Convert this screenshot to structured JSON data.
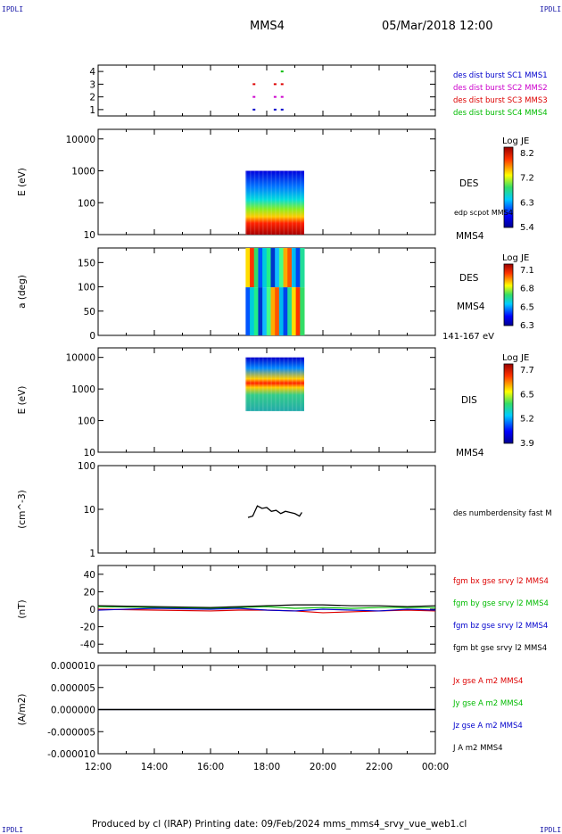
{
  "header": {
    "corner_label": "IPDLI",
    "title": "MMS4",
    "date": "05/Mar/2018 12:00"
  },
  "footer": {
    "text": "Produced by cl (IRAP)   Printing date: 09/Feb/2024   mms_mms4_srvy_vue_web1.cl"
  },
  "colors": {
    "mms1": "#0000cc",
    "mms2": "#cc00cc",
    "mms3": "#dd0000",
    "mms4": "#00bb00",
    "bx": "#dd0000",
    "by": "#00bb00",
    "bz": "#0000cc",
    "bt": "#000000"
  },
  "chart_data": [
    {
      "type": "scatter",
      "name": "burst availability",
      "yticks": [
        "1",
        "2",
        "3",
        "4"
      ],
      "ylim": [
        0.5,
        4.5
      ],
      "xlim": [
        "12:00",
        "00:00"
      ],
      "series": [
        {
          "name": "des dist burst SC1 MMS1",
          "y": 1,
          "times": [
            "17:30",
            "18:15",
            "18:30"
          ]
        },
        {
          "name": "des dist burst SC2 MMS2",
          "y": 2,
          "times": [
            "17:30",
            "18:15",
            "18:30"
          ]
        },
        {
          "name": "des dist burst SC3 MMS3",
          "y": 3,
          "times": [
            "17:30",
            "18:15",
            "18:30"
          ]
        },
        {
          "name": "des dist burst SC4 MMS4",
          "y": 4,
          "times": [
            "18:30"
          ]
        }
      ]
    },
    {
      "type": "heatmap",
      "name": "DES energy spectrogram",
      "ylabel": "E (eV)",
      "yscale": "log",
      "yticks": [
        "10",
        "100",
        "1000",
        "10000"
      ],
      "ylim": [
        10,
        20000
      ],
      "data_time_range": [
        "17:15",
        "19:20"
      ],
      "data_value_range": [
        10,
        1000
      ],
      "right_labels": [
        "DES",
        "edp scpot MMS4",
        "MMS4"
      ],
      "colorbar": {
        "title": "Log JE",
        "ticks": [
          "8.2",
          "7.2",
          "6.3",
          "5.4"
        ]
      }
    },
    {
      "type": "heatmap",
      "name": "DES pitch angle",
      "ylabel": "a (deg)",
      "yticks": [
        "0",
        "50",
        "100",
        "150"
      ],
      "ylim": [
        0,
        180
      ],
      "data_time_range": [
        "17:15",
        "19:20"
      ],
      "right_labels": [
        "DES",
        "MMS4",
        "141-167 eV"
      ],
      "colorbar": {
        "title": "Log JE",
        "ticks": [
          "7.1",
          "6.8",
          "6.5",
          "6.3"
        ]
      }
    },
    {
      "type": "heatmap",
      "name": "DIS energy spectrogram",
      "ylabel": "E (eV)",
      "yscale": "log",
      "yticks": [
        "10",
        "100",
        "1000",
        "10000"
      ],
      "ylim": [
        10,
        20000
      ],
      "data_time_range": [
        "17:15",
        "19:20"
      ],
      "data_value_range": [
        200,
        10000
      ],
      "right_labels": [
        "DIS",
        "MMS4"
      ],
      "colorbar": {
        "title": "Log JE",
        "ticks": [
          "7.7",
          "6.5",
          "5.2",
          "3.9"
        ]
      }
    },
    {
      "type": "line",
      "name": "density",
      "ylabel": "(cm^-3)",
      "yscale": "log",
      "yticks": [
        "1",
        "10",
        "100"
      ],
      "ylim": [
        1,
        100
      ],
      "series": [
        {
          "name": "des numberdensity fast M",
          "x": [
            "17:20",
            "17:30",
            "17:40",
            "17:50",
            "18:00",
            "18:10",
            "18:20",
            "18:30",
            "18:40",
            "18:50",
            "19:00",
            "19:10",
            "19:15"
          ],
          "y": [
            6.5,
            7.0,
            12.0,
            10.5,
            11.0,
            9.0,
            9.5,
            8.0,
            9.0,
            8.5,
            8.0,
            7.0,
            8.5
          ]
        }
      ]
    },
    {
      "type": "line",
      "name": "magnetic field",
      "ylabel": "(nT)",
      "yticks": [
        "-40",
        "-20",
        "0",
        "20",
        "40"
      ],
      "ylim": [
        -50,
        50
      ],
      "x": [
        "12:00",
        "14:00",
        "16:00",
        "17:00",
        "18:00",
        "19:00",
        "20:00",
        "21:00",
        "22:00",
        "23:00",
        "00:00"
      ],
      "series": [
        {
          "name": "fgm bx gse srvy l2 MMS4",
          "y": [
            0,
            -1,
            -2,
            -1,
            -1,
            -2,
            -4,
            -3,
            -2,
            -1,
            -2
          ]
        },
        {
          "name": "fgm by gse srvy l2 MMS4",
          "y": [
            3,
            2,
            1,
            2,
            3,
            1,
            2,
            1,
            2,
            2,
            2
          ]
        },
        {
          "name": "fgm bz gse srvy l2 MMS4",
          "y": [
            -1,
            1,
            0,
            1,
            -1,
            -2,
            0,
            -1,
            -2,
            0,
            -1
          ]
        },
        {
          "name": "fgm bt gse srvy l2 MMS4",
          "y": [
            4,
            3,
            2,
            3,
            4,
            5,
            5,
            4,
            4,
            3,
            4
          ]
        }
      ]
    },
    {
      "type": "line",
      "name": "current density",
      "ylabel": "(A/m2)",
      "yticks": [
        "-0.000010",
        "-0.000005",
        "0.000000",
        "0.000005",
        "0.000010"
      ],
      "ylim": [
        -1e-05,
        1e-05
      ],
      "x": [
        "12:00",
        "00:00"
      ],
      "series": [
        {
          "name": "Jx gse A m2 MMS4",
          "y": [
            0,
            0
          ]
        },
        {
          "name": "Jy gse A m2 MMS4",
          "y": [
            0,
            0
          ]
        },
        {
          "name": "Jz gse A m2 MMS4",
          "y": [
            0,
            0
          ]
        },
        {
          "name": "J A m2 MMS4",
          "y": [
            0,
            0
          ]
        }
      ]
    }
  ],
  "time_axis": [
    "12:00",
    "14:00",
    "16:00",
    "18:00",
    "20:00",
    "22:00",
    "00:00"
  ]
}
